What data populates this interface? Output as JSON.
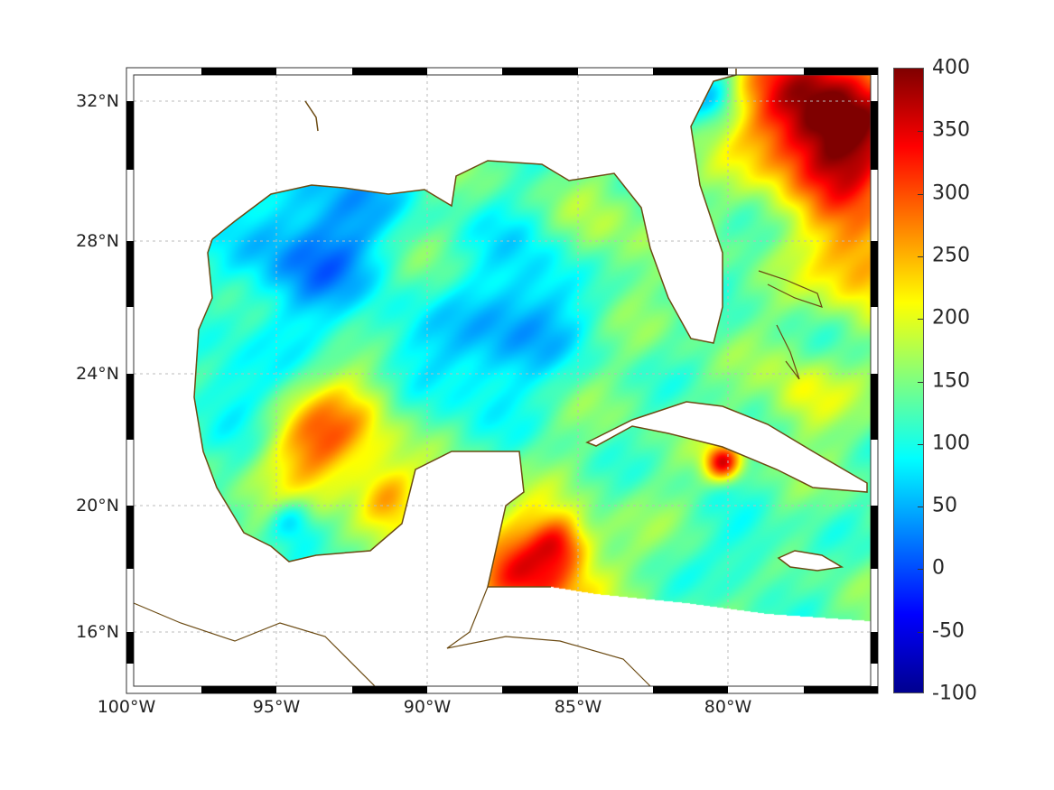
{
  "map": {
    "type": "heatmap",
    "region": "Gulf of Mexico and Caribbean",
    "lon_range": [
      -100,
      -75
    ],
    "lat_range": [
      14,
      33
    ],
    "x_ticks": [
      "100°W",
      "95°W",
      "90°W",
      "85°W",
      "80°W"
    ],
    "y_ticks": [
      "32°N",
      "28°N",
      "24°N",
      "20°N",
      "16°N"
    ],
    "grid": true,
    "coastline_color": "#6b4a12"
  },
  "colorbar": {
    "colormap": "jet",
    "range": [
      -100,
      400
    ],
    "ticks": [
      "400",
      "350",
      "300",
      "250",
      "200",
      "150",
      "100",
      "50",
      "0",
      "-50",
      "-100"
    ],
    "placement": "right"
  }
}
